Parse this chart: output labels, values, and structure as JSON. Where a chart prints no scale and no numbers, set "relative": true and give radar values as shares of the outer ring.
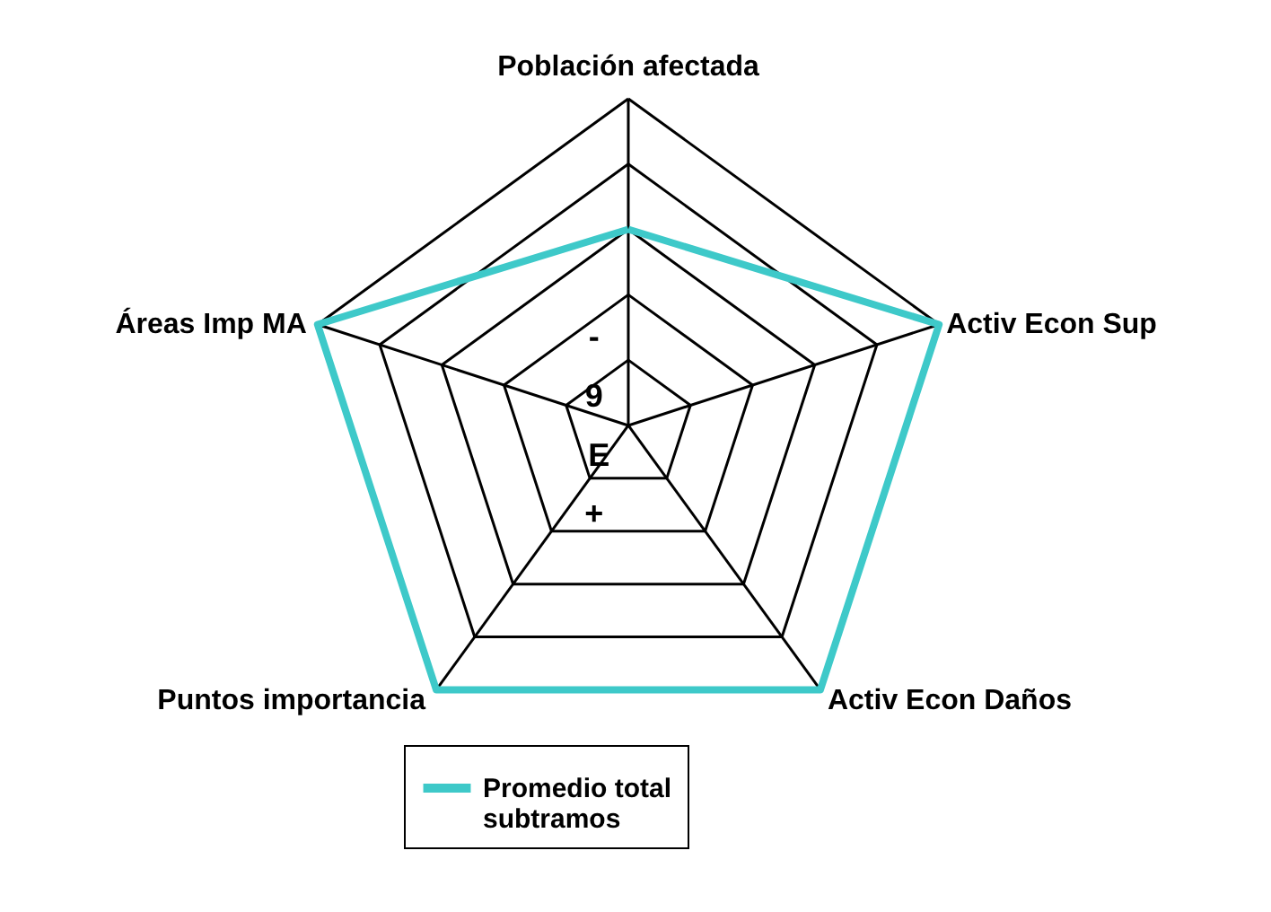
{
  "chart_data": {
    "type": "radar",
    "relative": true,
    "grid": true,
    "legend": "bottom",
    "categories": [
      "Población afectada",
      "Activ Econ Sup",
      "Activ Econ Daños",
      "Puntos importancia",
      "Áreas Imp MA"
    ],
    "series": [
      {
        "name": "Promedio total subtramos",
        "color": "#3ec9c9",
        "values": [
          0.6,
          1,
          1,
          1,
          1
        ]
      }
    ],
    "annotations": [
      "-",
      "9",
      "E",
      "+"
    ]
  }
}
